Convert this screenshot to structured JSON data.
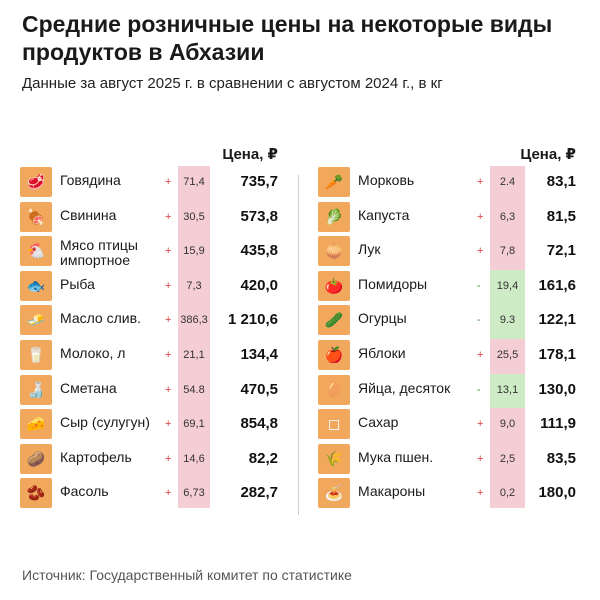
{
  "title": "Средние розничные цены на некоторые виды продуктов в Абхазии",
  "subtitle": "Данные за август 2025 г. в сравнении с августом 2024 г., в кг",
  "source": "Источник: Государственный комитет по статистике",
  "colors": {
    "increase": "#f5cdd4",
    "decrease": "#cdebc4",
    "icon_bg": "#f1a85c",
    "plus_sign": "#e0393e",
    "minus_sign": "#3c8f3c"
  },
  "chart_data": {
    "type": "table",
    "columns": [
      "",
      "",
      "Цена, ₽"
    ],
    "left": {
      "price_header": "Цена, ₽",
      "rows": [
        {
          "product": "Говядина",
          "icon": "beef-icon",
          "sign": "+",
          "change": "71,4",
          "price": "735,7"
        },
        {
          "product": "Свинина",
          "icon": "pork-icon",
          "sign": "+",
          "change": "30,5",
          "price": "573,8"
        },
        {
          "product": "Мясо птицы импортное",
          "icon": "chicken-icon",
          "sign": "+",
          "change": "15,9",
          "price": "435,8"
        },
        {
          "product": "Рыба",
          "icon": "fish-icon",
          "sign": "+",
          "change": "7,3",
          "price": "420,0"
        },
        {
          "product": "Масло слив.",
          "icon": "butter-icon",
          "sign": "+",
          "change": "386,3",
          "price": "1 210,6"
        },
        {
          "product": "Молоко, л",
          "icon": "milk-icon",
          "sign": "+",
          "change": "21,1",
          "price": "134,4"
        },
        {
          "product": "Сметана",
          "icon": "sour-cream-icon",
          "sign": "+",
          "change": "54.8",
          "price": "470,5"
        },
        {
          "product": "Сыр (сулугун)",
          "icon": "cheese-icon",
          "sign": "+",
          "change": "69,1",
          "price": "854,8"
        },
        {
          "product": "Картофель",
          "icon": "potato-icon",
          "sign": "+",
          "change": "14,6",
          "price": "82,2"
        },
        {
          "product": "Фасоль",
          "icon": "beans-icon",
          "sign": "+",
          "change": "6,73",
          "price": "282,7"
        }
      ]
    },
    "right": {
      "price_header": "Цена, ₽",
      "rows": [
        {
          "product": "Морковь",
          "icon": "carrot-icon",
          "sign": "+",
          "change": "2.4",
          "price": "83,1"
        },
        {
          "product": "Капуста",
          "icon": "cabbage-icon",
          "sign": "+",
          "change": "6,3",
          "price": "81,5"
        },
        {
          "product": "Лук",
          "icon": "onion-icon",
          "sign": "+",
          "change": "7,8",
          "price": "72,1"
        },
        {
          "product": "Помидоры",
          "icon": "tomato-icon",
          "sign": "-",
          "change": "19,4",
          "price": "161,6"
        },
        {
          "product": "Огурцы",
          "icon": "cucumber-icon",
          "sign": "-",
          "change": "9.3",
          "price": "122,1"
        },
        {
          "product": "Яблоки",
          "icon": "apple-icon",
          "sign": "+",
          "change": "25,5",
          "price": "178,1"
        },
        {
          "product": "Яйца, десяток",
          "icon": "egg-icon",
          "sign": "-",
          "change": "13,1",
          "price": "130,0"
        },
        {
          "product": "Сахар",
          "icon": "sugar-icon",
          "sign": "+",
          "change": "9,0",
          "price": "111,9"
        },
        {
          "product": "Мука пшен.",
          "icon": "flour-icon",
          "sign": "+",
          "change": "2,5",
          "price": "83,5"
        },
        {
          "product": "Макароны",
          "icon": "pasta-icon",
          "sign": "+",
          "change": "0,2",
          "price": "180,0"
        }
      ]
    }
  }
}
